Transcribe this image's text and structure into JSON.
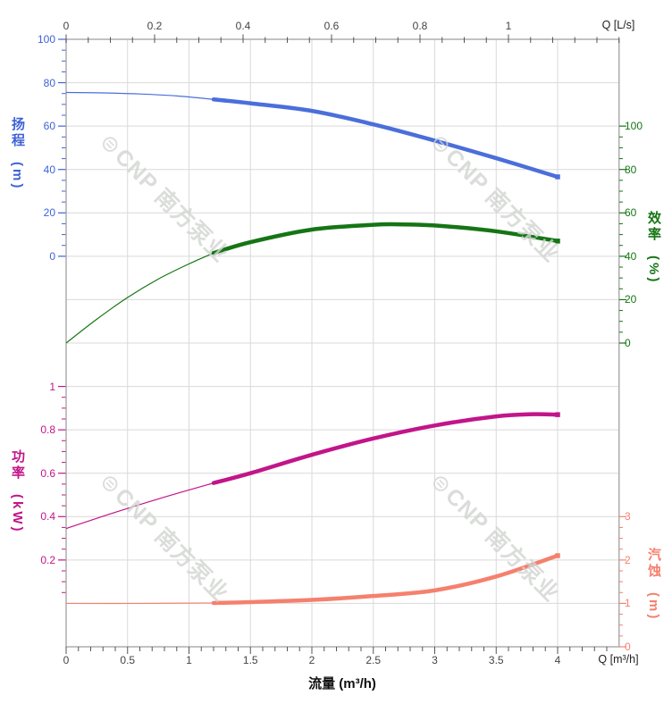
{
  "watermark": {
    "logo": "⊜",
    "text": "CNP 南方泵业"
  },
  "chart_data": {
    "type": "line",
    "title": "",
    "x_axis_bottom": {
      "unit_label": "Q [m³/h]",
      "axis_title": "流量 (m³/h)",
      "ticks": [
        0,
        0.5,
        1,
        1.5,
        2,
        2.5,
        3,
        3.5,
        4
      ],
      "minor_step": 0.1,
      "max": 4.5,
      "color": "#444444"
    },
    "x_axis_top": {
      "unit_label": "Q [L/s]",
      "ticks": [
        0,
        0.2,
        0.4,
        0.6,
        0.8,
        1
      ],
      "minor_step": 0.05,
      "max": 1.25,
      "lps_per_m3h": 0.2777778,
      "color": "#444444"
    },
    "y_axes": [
      {
        "id": "head",
        "name": "扬程",
        "unit": "(m)",
        "side": "left",
        "color": "#3e63d6",
        "ticks": [
          100,
          80,
          60,
          40,
          20,
          0
        ],
        "minor_step": 5,
        "minor_min": 5,
        "minor_max": 95,
        "zero_row": 5,
        "units_per_row": 20
      },
      {
        "id": "eff",
        "name": "效率",
        "unit": "(%)",
        "side": "right",
        "color": "#157515",
        "ticks": [
          100,
          80,
          60,
          40,
          20,
          0
        ],
        "minor_step": 5,
        "minor_min": 5,
        "minor_max": 95,
        "zero_row": 7,
        "units_per_row": 20
      },
      {
        "id": "power",
        "name": "功率",
        "unit": "(kW)",
        "side": "left",
        "color": "#c2158a",
        "ticks": [
          1,
          0.8,
          0.6,
          0.4,
          0.2
        ],
        "minor_step": 0.05,
        "minor_min": 0.05,
        "minor_max": 0.95,
        "zero_row": 13,
        "units_per_row": 0.2
      },
      {
        "id": "npsh",
        "name": "汽蚀",
        "unit": "(m)",
        "side": "right",
        "color": "#f5806e",
        "ticks": [
          3,
          2,
          1,
          0
        ],
        "minor_step": 0.25,
        "minor_min": 0.25,
        "minor_max": 2.75,
        "zero_row": 14,
        "units_per_row": 1
      }
    ],
    "series": [
      {
        "id": "head-curve",
        "axis": "head",
        "color": "#4a6fdb",
        "thin": [
          [
            0,
            75.5
          ],
          [
            0.3,
            75.3
          ],
          [
            0.6,
            74.8
          ],
          [
            0.9,
            73.9
          ],
          [
            1.2,
            72.3
          ]
        ],
        "thick": [
          [
            1.2,
            72.3
          ],
          [
            1.5,
            70.5
          ],
          [
            2,
            67
          ],
          [
            2.5,
            60.8
          ],
          [
            3,
            53.3
          ],
          [
            3.5,
            45.2
          ],
          [
            4,
            36.6
          ]
        ]
      },
      {
        "id": "efficiency-curve",
        "axis": "eff",
        "color": "#157515",
        "thin": [
          [
            0,
            0
          ],
          [
            0.25,
            11
          ],
          [
            0.5,
            21
          ],
          [
            0.75,
            29.5
          ],
          [
            1,
            36.5
          ],
          [
            1.2,
            41.5
          ]
        ],
        "thick": [
          [
            1.2,
            41.5
          ],
          [
            1.5,
            46.5
          ],
          [
            2,
            52.3
          ],
          [
            2.5,
            54.5
          ],
          [
            2.7,
            54.7
          ],
          [
            3,
            54.2
          ],
          [
            3.5,
            51.5
          ],
          [
            4,
            47
          ]
        ]
      },
      {
        "id": "power-curve",
        "axis": "power",
        "color": "#c2158a",
        "thin": [
          [
            0,
            0.345
          ],
          [
            0.4,
            0.42
          ],
          [
            0.8,
            0.49
          ],
          [
            1.2,
            0.555
          ]
        ],
        "thick": [
          [
            1.2,
            0.555
          ],
          [
            1.5,
            0.6
          ],
          [
            2,
            0.685
          ],
          [
            2.5,
            0.76
          ],
          [
            3,
            0.82
          ],
          [
            3.5,
            0.862
          ],
          [
            3.8,
            0.872
          ],
          [
            4,
            0.87
          ]
        ]
      },
      {
        "id": "npsh-curve",
        "axis": "npsh",
        "color": "#f5806e",
        "thin": [
          [
            0,
            1
          ],
          [
            0.6,
            1
          ],
          [
            1.2,
            1.01
          ]
        ],
        "thick": [
          [
            1.2,
            1.01
          ],
          [
            1.5,
            1.03
          ],
          [
            2,
            1.08
          ],
          [
            2.5,
            1.17
          ],
          [
            3,
            1.3
          ],
          [
            3.5,
            1.62
          ],
          [
            4,
            2.1
          ]
        ]
      }
    ],
    "grid": {
      "on": true,
      "color": "#d9d9d9",
      "frame_color": "#adadad"
    }
  }
}
